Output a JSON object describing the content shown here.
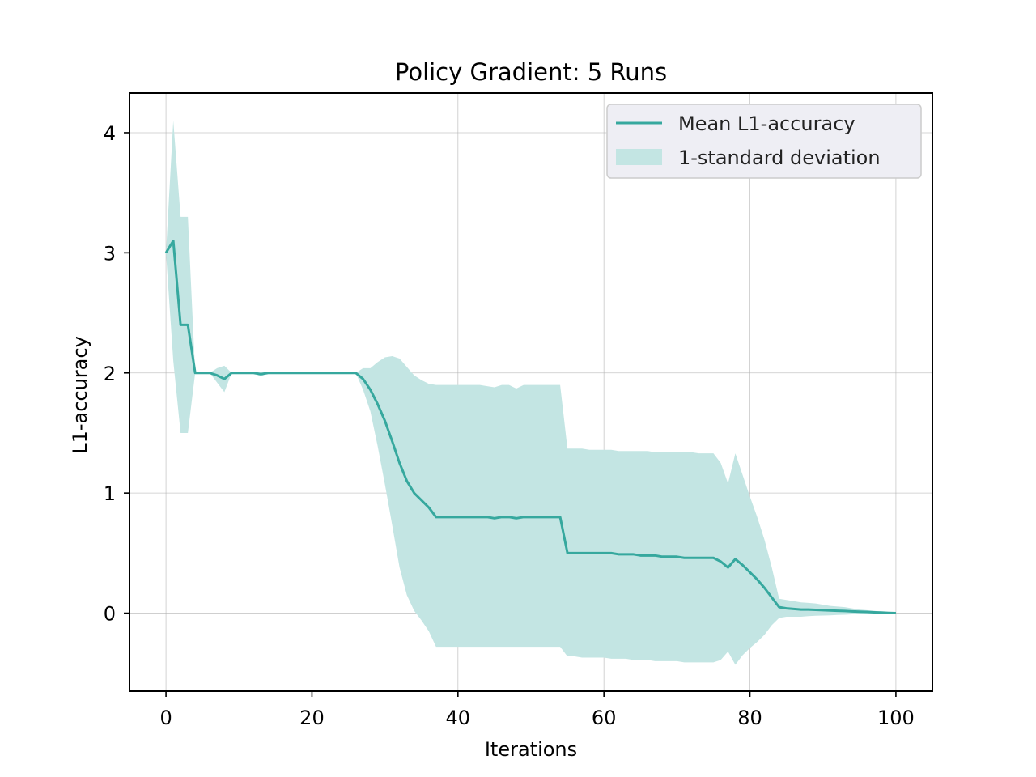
{
  "chart_data": {
    "type": "line",
    "title": "Policy Gradient: 5 Runs",
    "xlabel": "Iterations",
    "ylabel": "L1-accuracy",
    "xlim": [
      -5,
      105
    ],
    "ylim": [
      -0.65,
      4.33
    ],
    "xticks": [
      0,
      20,
      40,
      60,
      80,
      100
    ],
    "yticks": [
      0,
      1,
      2,
      3,
      4
    ],
    "grid": true,
    "legend_position": "top-right",
    "colors": {
      "line": "#36a89e",
      "band": "#c3e5e3",
      "legend_bg": "#eeeef4"
    },
    "series": [
      {
        "name": "Mean L1-accuracy",
        "x": [
          0,
          1,
          2,
          3,
          4,
          5,
          6,
          7,
          8,
          9,
          10,
          11,
          12,
          13,
          14,
          15,
          16,
          17,
          18,
          19,
          20,
          21,
          22,
          23,
          24,
          25,
          26,
          27,
          28,
          29,
          30,
          31,
          32,
          33,
          34,
          35,
          36,
          37,
          38,
          39,
          40,
          41,
          42,
          43,
          44,
          45,
          46,
          47,
          48,
          49,
          50,
          51,
          52,
          53,
          54,
          55,
          56,
          57,
          58,
          59,
          60,
          61,
          62,
          63,
          64,
          65,
          66,
          67,
          68,
          69,
          70,
          71,
          72,
          73,
          74,
          75,
          76,
          77,
          78,
          79,
          80,
          81,
          82,
          83,
          84,
          85,
          86,
          87,
          88,
          89,
          90,
          91,
          92,
          93,
          94,
          95,
          96,
          97,
          98,
          99,
          100
        ],
        "y": [
          3.0,
          3.1,
          2.4,
          2.4,
          2.0,
          2.0,
          2.0,
          1.98,
          1.95,
          2.0,
          2.0,
          2.0,
          2.0,
          1.99,
          2.0,
          2.0,
          2.0,
          2.0,
          2.0,
          2.0,
          2.0,
          2.0,
          2.0,
          2.0,
          2.0,
          2.0,
          2.0,
          1.95,
          1.86,
          1.74,
          1.6,
          1.43,
          1.25,
          1.1,
          1.0,
          0.94,
          0.88,
          0.8,
          0.8,
          0.8,
          0.8,
          0.8,
          0.8,
          0.8,
          0.8,
          0.79,
          0.8,
          0.8,
          0.79,
          0.8,
          0.8,
          0.8,
          0.8,
          0.8,
          0.8,
          0.5,
          0.5,
          0.5,
          0.5,
          0.5,
          0.5,
          0.5,
          0.49,
          0.49,
          0.49,
          0.48,
          0.48,
          0.48,
          0.47,
          0.47,
          0.47,
          0.46,
          0.46,
          0.46,
          0.46,
          0.46,
          0.43,
          0.38,
          0.45,
          0.4,
          0.34,
          0.28,
          0.21,
          0.13,
          0.05,
          0.04,
          0.035,
          0.03,
          0.03,
          0.027,
          0.025,
          0.022,
          0.02,
          0.018,
          0.015,
          0.012,
          0.01,
          0.007,
          0.005,
          0.002,
          0.0
        ]
      },
      {
        "name": "1-standard deviation",
        "x": [
          0,
          1,
          2,
          3,
          4,
          5,
          6,
          7,
          8,
          9,
          10,
          11,
          12,
          13,
          14,
          15,
          16,
          17,
          18,
          19,
          20,
          21,
          22,
          23,
          24,
          25,
          26,
          27,
          28,
          29,
          30,
          31,
          32,
          33,
          34,
          35,
          36,
          37,
          38,
          39,
          40,
          41,
          42,
          43,
          44,
          45,
          46,
          47,
          48,
          49,
          50,
          51,
          52,
          53,
          54,
          55,
          56,
          57,
          58,
          59,
          60,
          61,
          62,
          63,
          64,
          65,
          66,
          67,
          68,
          69,
          70,
          71,
          72,
          73,
          74,
          75,
          76,
          77,
          78,
          79,
          80,
          81,
          82,
          83,
          84,
          85,
          86,
          87,
          88,
          89,
          90,
          91,
          92,
          93,
          94,
          95,
          96,
          97,
          98,
          99,
          100
        ],
        "upper": [
          3.0,
          4.1,
          3.3,
          3.3,
          2.0,
          2.0,
          2.0,
          2.04,
          2.06,
          2.0,
          2.0,
          2.0,
          2.0,
          2.01,
          2.0,
          2.0,
          2.0,
          2.0,
          2.0,
          2.0,
          2.0,
          2.0,
          2.0,
          2.0,
          2.0,
          2.0,
          2.0,
          2.04,
          2.04,
          2.09,
          2.13,
          2.14,
          2.12,
          2.05,
          1.98,
          1.94,
          1.91,
          1.9,
          1.9,
          1.9,
          1.9,
          1.9,
          1.9,
          1.9,
          1.89,
          1.88,
          1.9,
          1.9,
          1.87,
          1.9,
          1.9,
          1.9,
          1.9,
          1.9,
          1.9,
          1.37,
          1.37,
          1.37,
          1.36,
          1.36,
          1.36,
          1.36,
          1.35,
          1.35,
          1.35,
          1.35,
          1.35,
          1.34,
          1.34,
          1.34,
          1.34,
          1.34,
          1.34,
          1.33,
          1.33,
          1.33,
          1.25,
          1.08,
          1.33,
          1.15,
          0.97,
          0.8,
          0.61,
          0.38,
          0.12,
          0.11,
          0.1,
          0.09,
          0.085,
          0.08,
          0.07,
          0.06,
          0.055,
          0.05,
          0.04,
          0.03,
          0.025,
          0.02,
          0.012,
          0.006,
          0.0
        ],
        "lower": [
          3.0,
          2.1,
          1.5,
          1.5,
          2.0,
          2.0,
          2.0,
          1.92,
          1.84,
          2.0,
          2.0,
          2.0,
          2.0,
          1.97,
          2.0,
          2.0,
          2.0,
          2.0,
          2.0,
          2.0,
          2.0,
          2.0,
          2.0,
          2.0,
          2.0,
          2.0,
          2.0,
          1.86,
          1.68,
          1.39,
          1.07,
          0.73,
          0.38,
          0.15,
          0.02,
          -0.06,
          -0.15,
          -0.28,
          -0.28,
          -0.28,
          -0.28,
          -0.28,
          -0.28,
          -0.28,
          -0.28,
          -0.28,
          -0.28,
          -0.28,
          -0.28,
          -0.28,
          -0.28,
          -0.28,
          -0.28,
          -0.28,
          -0.28,
          -0.36,
          -0.36,
          -0.37,
          -0.37,
          -0.37,
          -0.37,
          -0.38,
          -0.38,
          -0.38,
          -0.39,
          -0.39,
          -0.39,
          -0.4,
          -0.4,
          -0.4,
          -0.4,
          -0.41,
          -0.41,
          -0.41,
          -0.41,
          -0.41,
          -0.39,
          -0.32,
          -0.43,
          -0.35,
          -0.29,
          -0.24,
          -0.18,
          -0.1,
          -0.04,
          -0.03,
          -0.03,
          -0.03,
          -0.025,
          -0.022,
          -0.02,
          -0.018,
          -0.015,
          -0.013,
          -0.01,
          -0.008,
          -0.006,
          -0.004,
          -0.002,
          -0.001,
          0.0
        ]
      }
    ]
  }
}
